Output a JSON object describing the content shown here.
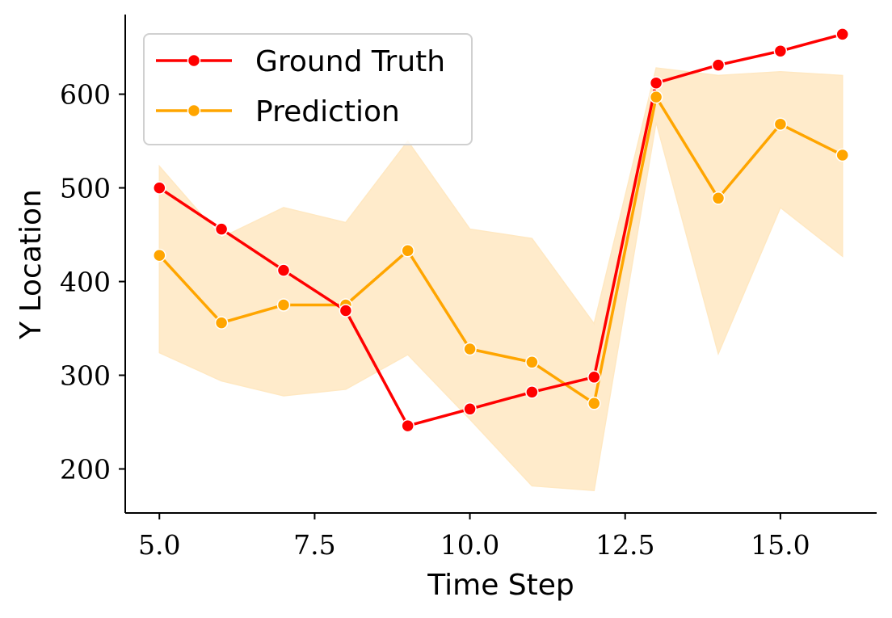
{
  "chart_data": {
    "type": "line",
    "xlabel": "Time Step",
    "ylabel": "Y Location",
    "xlim": [
      4.45,
      16.55
    ],
    "ylim": [
      153,
      685
    ],
    "xticks": [
      5.0,
      7.5,
      10.0,
      12.5,
      15.0
    ],
    "xtick_labels": [
      "5.0",
      "7.5",
      "10.0",
      "12.5",
      "15.0"
    ],
    "yticks": [
      200,
      300,
      400,
      500,
      600
    ],
    "ytick_labels": [
      "200",
      "300",
      "400",
      "500",
      "600"
    ],
    "legend_position": "top-left",
    "x": [
      5,
      6,
      7,
      8,
      9,
      10,
      11,
      12,
      13,
      14,
      15,
      16
    ],
    "series": [
      {
        "name": "Ground Truth",
        "color": "#ff0000",
        "values": [
          500,
          456,
          412,
          369,
          246,
          264,
          282,
          298,
          612,
          631,
          646,
          664
        ]
      },
      {
        "name": "Prediction",
        "color": "#ffa500",
        "values": [
          428,
          356,
          375,
          375,
          433,
          328,
          314,
          270,
          597,
          489,
          568,
          535
        ],
        "band_color": "#ffe8c2",
        "band_lower": [
          324,
          294,
          278,
          285,
          322,
          253,
          182,
          177,
          570,
          323,
          479,
          427
        ],
        "band_upper": [
          523,
          447,
          479,
          463,
          550,
          456,
          446,
          355,
          628,
          620,
          624,
          620
        ]
      }
    ]
  }
}
